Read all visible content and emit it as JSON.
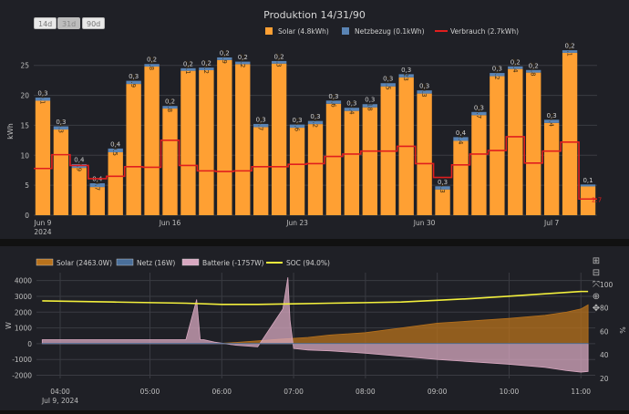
{
  "top_chart": {
    "buttons": [
      {
        "label": "14d",
        "active": false
      },
      {
        "label": "31d",
        "active": true
      },
      {
        "label": "90d",
        "active": false
      }
    ],
    "colors": {
      "solar": "#ffa033",
      "netz": "#5a84b4",
      "verbrauch": "#e01e1e",
      "bg": "#1f2026"
    }
  },
  "bottom_chart": {
    "colors": {
      "solar": "#b8721c",
      "netz": "#4a6f9a",
      "batterie": "#d8a8c0",
      "soc": "#f2ef3c"
    },
    "modebar_icons": [
      "zoom-in-icon",
      "zoom-out-icon",
      "autoscale-icon",
      "zoom-icon",
      "pan-icon"
    ]
  },
  "chart_data": [
    {
      "type": "bar",
      "title": "Produktion 14/31/90",
      "ylabel": "kWh",
      "ylim": [
        0,
        28
      ],
      "yticks": [
        0,
        5,
        10,
        15,
        20,
        25
      ],
      "xtick_labels": [
        {
          "day": 0,
          "label": "Jun 9",
          "sub": "2024"
        },
        {
          "day": 7,
          "label": "Jun 16",
          "sub": ""
        },
        {
          "day": 14,
          "label": "Jun 23",
          "sub": ""
        },
        {
          "day": 21,
          "label": "Jun 30",
          "sub": ""
        },
        {
          "day": 28,
          "label": "Jul 7",
          "sub": ""
        }
      ],
      "series": [
        {
          "name": "Solar (4.8kWh)",
          "values": [
            19.1,
            14.3,
            7.9,
            4.7,
            10.5,
            21.9,
            24.8,
            17.8,
            24.1,
            24.2,
            25.9,
            25.2,
            14.7,
            25.3,
            14.6,
            15.2,
            18.6,
            17.4,
            18,
            21.5,
            23,
            20.3,
            4.3,
            12.4,
            16.7,
            23.2,
            24.4,
            23.8,
            15.4,
            27.1,
            4.8
          ],
          "labels": [
            "19.1",
            "14.3",
            "7.9",
            "4.7",
            "10.5",
            "21.9",
            "24.8",
            "17.8",
            "24.1",
            "24.2",
            "25.9",
            "25.2",
            "14.7",
            "25.3",
            "14.6",
            "15.2",
            "18.6",
            "17.4",
            "18",
            "21.5",
            "23",
            "20.3",
            "4.3",
            "12.4",
            "16.7",
            "23.2",
            "24.4",
            "23.8",
            "15.4",
            "27.1",
            ""
          ]
        },
        {
          "name": "Netzbezug (0.1kWh)",
          "values": [
            0.3,
            0.3,
            0.4,
            0.4,
            0.4,
            0.3,
            0.2,
            0.2,
            0.2,
            0.2,
            0.2,
            0.2,
            0.3,
            0.2,
            0.3,
            0.3,
            0.3,
            0.3,
            0.3,
            0.3,
            0.3,
            0.3,
            0.3,
            0.4,
            0.3,
            0.3,
            0.2,
            0.2,
            0.3,
            0.2,
            0.1
          ],
          "labels": [
            "0,3",
            "0,3",
            "0,4",
            "0,4",
            "0,4",
            "0,3",
            "0,2",
            "0,2",
            "0,2",
            "0,2",
            "0,2",
            "0,2",
            "0,3",
            "0,2",
            "0,3",
            "0,3",
            "0,3",
            "0,3",
            "0,3",
            "0,3",
            "0,3",
            "0,3",
            "0,3",
            "0,4",
            "0,3",
            "0,3",
            "0,2",
            "0,2",
            "0,3",
            "0,2",
            "0,1"
          ]
        },
        {
          "name": "Verbrauch (2.7kWh)",
          "values": [
            7.8,
            10.1,
            8.3,
            6.1,
            6.5,
            8.1,
            8.0,
            12.5,
            8.3,
            7.4,
            7.3,
            7.4,
            8.1,
            8.1,
            8.5,
            8.6,
            9.8,
            10.2,
            10.7,
            10.7,
            11.5,
            8.6,
            6.3,
            8.4,
            10.2,
            10.8,
            13.1,
            8.7,
            10.7,
            12.2,
            2.7
          ]
        }
      ],
      "last_label": "2.7"
    },
    {
      "type": "area",
      "ylabel": "W",
      "y2label": "%",
      "ylim": [
        -2200,
        4500
      ],
      "y2lim": [
        20,
        110
      ],
      "yticks": [
        -2000,
        -1000,
        0,
        1000,
        2000,
        3000,
        4000
      ],
      "y2ticks": [
        20,
        40,
        60,
        80,
        100
      ],
      "xlim": [
        "03:25",
        "11:12"
      ],
      "xtick_labels": [
        {
          "h": 3.75,
          "label": "04:00",
          "sub": "Jul 9, 2024"
        },
        {
          "h": 5.0,
          "label": "05:00",
          "sub": ""
        },
        {
          "h": 6.0,
          "label": "06:00",
          "sub": ""
        },
        {
          "h": 7.0,
          "label": "07:00",
          "sub": ""
        },
        {
          "h": 8.0,
          "label": "08:00",
          "sub": ""
        },
        {
          "h": 9.0,
          "label": "09:00",
          "sub": ""
        },
        {
          "h": 10.0,
          "label": "10:00",
          "sub": ""
        },
        {
          "h": 11.0,
          "label": "11:00",
          "sub": ""
        }
      ],
      "series": [
        {
          "name": "Solar (2463.0W)",
          "x": [
            3.5,
            5.5,
            5.9,
            6.2,
            6.5,
            6.8,
            7.2,
            7.5,
            8.0,
            8.5,
            9.0,
            9.5,
            10.0,
            10.5,
            10.8,
            11.0,
            11.1
          ],
          "values": [
            0,
            0,
            0,
            80,
            180,
            280,
            400,
            550,
            700,
            1000,
            1300,
            1450,
            1600,
            1800,
            2000,
            2200,
            2463
          ]
        },
        {
          "name": "Netz (16W)",
          "x": [
            3.5,
            11.1
          ],
          "values": [
            16,
            16
          ]
        },
        {
          "name": "Batterie (-1757W)",
          "x": [
            3.5,
            5.0,
            5.5,
            5.65,
            5.7,
            5.75,
            5.9,
            6.2,
            6.5,
            6.85,
            6.92,
            6.95,
            7.0,
            7.2,
            7.5,
            8.0,
            8.5,
            9.0,
            9.5,
            10.0,
            10.5,
            10.8,
            11.0,
            11.1
          ],
          "values": [
            250,
            250,
            250,
            2800,
            250,
            250,
            100,
            -100,
            -200,
            2200,
            4200,
            1500,
            -300,
            -400,
            -450,
            -600,
            -800,
            -1000,
            -1150,
            -1300,
            -1500,
            -1700,
            -1800,
            -1757
          ]
        },
        {
          "name": "SOC (94.0%)",
          "x": [
            3.5,
            4.5,
            5.5,
            6.0,
            6.5,
            7.0,
            7.5,
            8.0,
            8.5,
            9.0,
            9.5,
            10.0,
            10.5,
            11.0,
            11.1
          ],
          "values": [
            86,
            85,
            84,
            83,
            83,
            83.5,
            84,
            84.5,
            85,
            86.5,
            88,
            90,
            92,
            94,
            94
          ]
        }
      ]
    }
  ]
}
